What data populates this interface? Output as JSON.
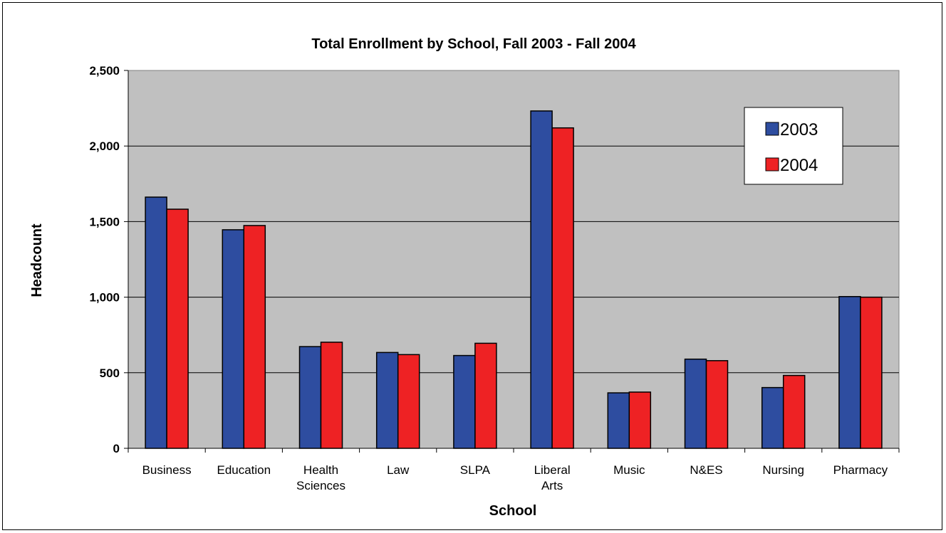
{
  "chart_data": {
    "type": "bar",
    "title": "Total Enrollment by School, Fall 2003 - Fall 2004",
    "xlabel": "School",
    "ylabel": "Headcount",
    "categories": [
      [
        "Business"
      ],
      [
        "Education"
      ],
      [
        "Health",
        "Sciences"
      ],
      [
        "Law"
      ],
      [
        "SLPA"
      ],
      [
        "Liberal",
        "Arts"
      ],
      [
        "Music"
      ],
      [
        "N&ES"
      ],
      [
        "Nursing"
      ],
      [
        "Pharmacy"
      ]
    ],
    "series": [
      {
        "name": "2003",
        "color": "#2E4DA0",
        "values": [
          1662,
          1446,
          673,
          634,
          614,
          2232,
          367,
          590,
          402,
          1004
        ]
      },
      {
        "name": "2004",
        "color": "#EE2224",
        "values": [
          1582,
          1474,
          702,
          620,
          695,
          2120,
          372,
          580,
          482,
          1000
        ]
      }
    ],
    "ylim": [
      0,
      2500
    ],
    "yticks": [
      0,
      500,
      1000,
      1500,
      2000,
      2500
    ],
    "ytick_labels": [
      "0",
      "500",
      "1,000",
      "1,500",
      "2,000",
      "2,500"
    ],
    "grid": true,
    "legend_position": "top-right",
    "plot_background": "#C0C0C0"
  }
}
